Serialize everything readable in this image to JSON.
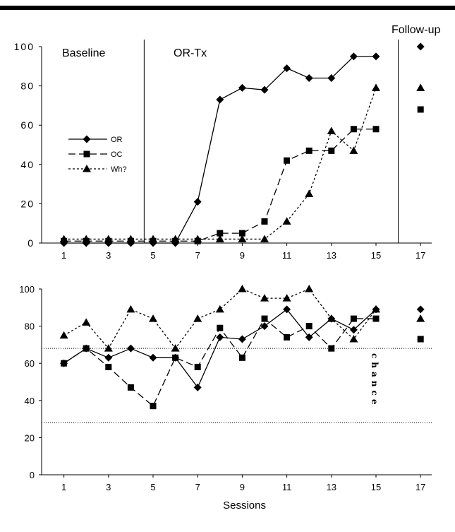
{
  "chart_data": [
    {
      "type": "line",
      "phases": [
        "Baseline",
        "OR-Tx",
        "Follow-up"
      ],
      "x_ticks": [
        1,
        3,
        5,
        7,
        9,
        11,
        13,
        15,
        17
      ],
      "y_ticks": [
        0,
        20,
        40,
        60,
        80,
        100
      ],
      "ylim": [
        0,
        100
      ],
      "xlim": [
        0,
        17.5
      ],
      "legend": {
        "placement": "left-middle"
      },
      "series": [
        {
          "name": "OR",
          "marker": "diamond",
          "dash": "solid",
          "x": [
            1,
            2,
            3,
            4,
            5,
            6,
            7,
            8,
            9,
            10,
            11,
            12,
            13,
            14,
            15
          ],
          "values": [
            0,
            0,
            0,
            0,
            0,
            0,
            21,
            73,
            79,
            78,
            89,
            84,
            84,
            95,
            95
          ],
          "followup": {
            "x": 17,
            "value": 100
          }
        },
        {
          "name": "OC",
          "marker": "square",
          "dash": "long",
          "x": [
            1,
            2,
            3,
            4,
            5,
            6,
            7,
            8,
            9,
            10,
            11,
            12,
            13,
            14,
            15
          ],
          "values": [
            1,
            1,
            1,
            1,
            1,
            1,
            1,
            5,
            5,
            11,
            42,
            47,
            47,
            58,
            58
          ],
          "followup": {
            "x": 17,
            "value": 68
          }
        },
        {
          "name": "Wh?",
          "marker": "triangle",
          "dash": "short",
          "x": [
            1,
            2,
            3,
            4,
            5,
            6,
            7,
            8,
            9,
            10,
            11,
            12,
            13,
            14,
            15
          ],
          "values": [
            2,
            2,
            2,
            2,
            2,
            2,
            2,
            2,
            2,
            2,
            11,
            25,
            57,
            47,
            79
          ],
          "followup": {
            "x": 17,
            "value": 79
          }
        }
      ]
    },
    {
      "type": "line",
      "xlabel": "Sessions",
      "x_ticks": [
        1,
        3,
        5,
        7,
        9,
        11,
        13,
        15,
        17
      ],
      "y_ticks": [
        0,
        20,
        40,
        60,
        80,
        100
      ],
      "ylim": [
        0,
        100
      ],
      "xlim": [
        0,
        17.5
      ],
      "chance_label": "chance",
      "chance_band": [
        28,
        68
      ],
      "series": [
        {
          "name": "OR",
          "marker": "diamond",
          "dash": "solid",
          "x": [
            1,
            2,
            3,
            4,
            5,
            6,
            7,
            8,
            9,
            10,
            11,
            12,
            13,
            14,
            15
          ],
          "values": [
            60,
            68,
            63,
            68,
            63,
            63,
            47,
            74,
            73,
            80,
            89,
            74,
            84,
            78,
            89
          ],
          "followup": {
            "x": 17,
            "value": 89
          }
        },
        {
          "name": "OC",
          "marker": "square",
          "dash": "long",
          "x": [
            1,
            2,
            3,
            4,
            5,
            6,
            7,
            8,
            9,
            10,
            11,
            12,
            13,
            14,
            15
          ],
          "values": [
            60,
            68,
            58,
            47,
            37,
            63,
            58,
            79,
            63,
            84,
            74,
            80,
            68,
            84,
            84
          ],
          "followup": {
            "x": 17,
            "value": 73
          }
        },
        {
          "name": "Wh?",
          "marker": "triangle",
          "dash": "short",
          "x": [
            1,
            2,
            3,
            4,
            5,
            6,
            7,
            8,
            9,
            10,
            11,
            12,
            13,
            14,
            15
          ],
          "values": [
            75,
            82,
            68,
            89,
            84,
            68,
            84,
            89,
            100,
            95,
            95,
            100,
            84,
            73,
            89
          ],
          "followup": {
            "x": 17,
            "value": 84
          }
        }
      ]
    }
  ]
}
